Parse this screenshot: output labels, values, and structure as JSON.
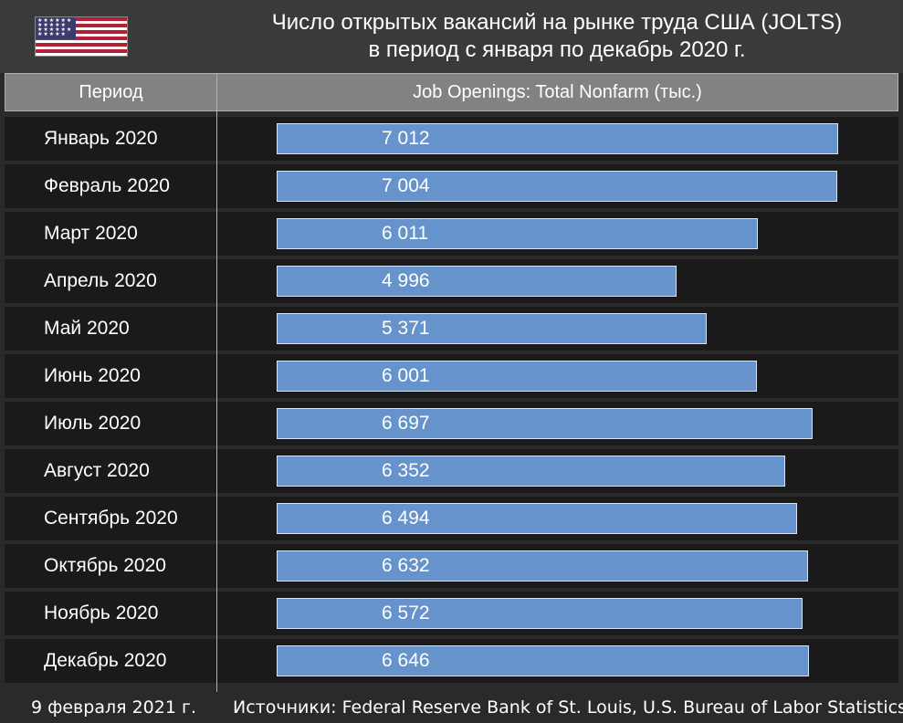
{
  "header": {
    "title_line1": "Число открытых вакансий на рынке труда США (JOLTS)",
    "title_line2": "в период с января по декабрь 2020 г.",
    "flag_icon": "us-flag-icon"
  },
  "table": {
    "col_period": "Период",
    "col_value": "Job Openings: Total Nonfarm (тыс.)"
  },
  "chart_data": {
    "type": "bar",
    "orientation": "horizontal",
    "title": "Число открытых вакансий на рынке труда США (JOLTS) в период с января по декабрь 2020 г.",
    "xlabel": "Job Openings: Total Nonfarm (тыс.)",
    "ylabel": "Период",
    "categories": [
      "Январь 2020",
      "Февраль 2020",
      "Март 2020",
      "Апрель 2020",
      "Май 2020",
      "Июнь 2020",
      "Июль 2020",
      "Август 2020",
      "Сентябрь 2020",
      "Октябрь 2020",
      "Ноябрь 2020",
      "Декабрь 2020"
    ],
    "values": [
      7012,
      7004,
      6011,
      4996,
      5371,
      6001,
      6697,
      6352,
      6494,
      6632,
      6572,
      6646
    ],
    "value_labels": [
      "7 012",
      "7 004",
      "6 011",
      "4 996",
      "5 371",
      "6 001",
      "6 697",
      "6 352",
      "6 494",
      "6 632",
      "6 572",
      "6 646"
    ],
    "bar_color": "#6693cc",
    "grid": false
  },
  "footer": {
    "date": "9 февраля 2021 г.",
    "sources": "Источники: Federal Reserve Bank of St. Louis, U.S. Bureau of Labor Statistics"
  },
  "colors": {
    "background": "#2a2a2a",
    "header_bg": "#3a3a3a",
    "column_header_bg": "#828282",
    "row_bg": "#1a1a1a",
    "bar": "#6693cc"
  }
}
